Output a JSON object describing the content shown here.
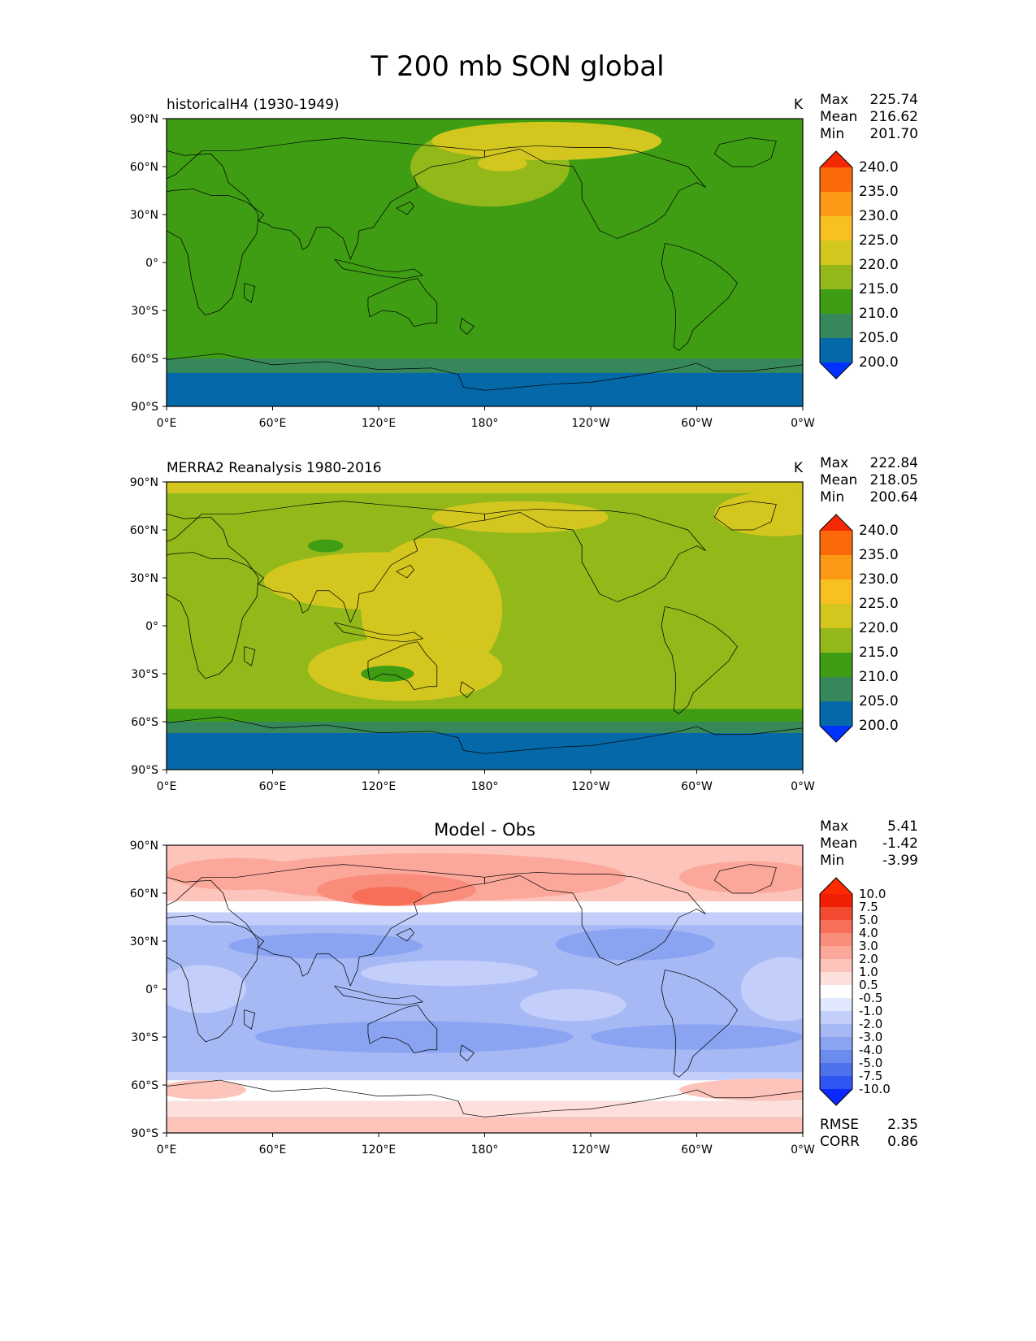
{
  "figure_title": "T 200 mb SON global",
  "chart_data": [
    {
      "type": "heatmap",
      "title": "historicalH4 (1930-1949)",
      "units": "K",
      "stats": [
        {
          "label": "Max",
          "value": "225.74"
        },
        {
          "label": "Mean",
          "value": "216.62"
        },
        {
          "label": "Min",
          "value": "201.70"
        }
      ],
      "x_ticks": [
        "0°E",
        "60°E",
        "120°E",
        "180°",
        "120°W",
        "60°W",
        "0°W"
      ],
      "y_ticks": [
        "90°N",
        "60°N",
        "30°N",
        "0°",
        "30°S",
        "60°S",
        "90°S"
      ],
      "xlim": [
        0,
        360
      ],
      "ylim": [
        -90,
        90
      ],
      "colorbar_levels": [
        "200.0",
        "205.0",
        "210.0",
        "215.0",
        "220.0",
        "225.0",
        "230.0",
        "235.0",
        "240.0"
      ],
      "colorbar_colors": [
        "#0033ff",
        "#0568a8",
        "#36875a",
        "#3f9d14",
        "#92b81a",
        "#d3c71f",
        "#f9c022",
        "#fb9914",
        "#fb6a0a",
        "#f52a05"
      ],
      "base_band": 3,
      "bands": [
        {
          "lat": [
            -90,
            -69
          ],
          "band": 1
        },
        {
          "lat": [
            -69,
            -60
          ],
          "band": 2
        },
        {
          "lat": [
            -60,
            -52
          ],
          "band": 3
        }
      ],
      "regions": [
        {
          "lon": 183,
          "lat": 60,
          "rlon": 45,
          "rlat": 25,
          "band": 4
        },
        {
          "lon": 215,
          "lat": 76,
          "rlon": 65,
          "rlat": 12,
          "band": 5
        },
        {
          "lon": 190,
          "lat": 62,
          "rlon": 14,
          "rlat": 5,
          "band": 5
        },
        {
          "lon": 20,
          "lat": 38,
          "rlon": 55,
          "rlat": 12,
          "band": 3
        },
        {
          "lon": 320,
          "lat": 32,
          "rlon": 60,
          "rlat": 15,
          "band": 3
        },
        {
          "lon": 315,
          "lat": -30,
          "rlon": 40,
          "rlat": 13,
          "band": 3
        },
        {
          "lon": 242,
          "lat": -30,
          "rlon": 50,
          "rlat": 15,
          "band": 3
        },
        {
          "lon": 55,
          "lat": -30,
          "rlon": 45,
          "rlat": 6,
          "band": 3
        },
        {
          "lon": 0,
          "lat": -33,
          "rlon": 10,
          "rlat": 10,
          "band": 3
        }
      ]
    },
    {
      "type": "heatmap",
      "title": "MERRA2 Reanalysis 1980-2016",
      "units": "K",
      "stats": [
        {
          "label": "Max",
          "value": "222.84"
        },
        {
          "label": "Mean",
          "value": "218.05"
        },
        {
          "label": "Min",
          "value": "200.64"
        }
      ],
      "x_ticks": [
        "0°E",
        "60°E",
        "120°E",
        "180°",
        "120°W",
        "60°W",
        "0°W"
      ],
      "y_ticks": [
        "90°N",
        "60°N",
        "30°N",
        "0°",
        "30°S",
        "60°S",
        "90°S"
      ],
      "xlim": [
        0,
        360
      ],
      "ylim": [
        -90,
        90
      ],
      "colorbar_levels": [
        "200.0",
        "205.0",
        "210.0",
        "215.0",
        "220.0",
        "225.0",
        "230.0",
        "235.0",
        "240.0"
      ],
      "colorbar_colors": [
        "#0033ff",
        "#0568a8",
        "#36875a",
        "#3f9d14",
        "#92b81a",
        "#d3c71f",
        "#f9c022",
        "#fb9914",
        "#fb6a0a",
        "#f52a05"
      ],
      "base_band": 4,
      "bands": [
        {
          "lat": [
            -90,
            -67
          ],
          "band": 1
        },
        {
          "lat": [
            -67,
            -60
          ],
          "band": 2
        },
        {
          "lat": [
            -60,
            -52
          ],
          "band": 3
        },
        {
          "lat": [
            83,
            90
          ],
          "band": 5
        }
      ],
      "regions": [
        {
          "lon": 120,
          "lat": 28,
          "rlon": 65,
          "rlat": 18,
          "band": 5
        },
        {
          "lon": 150,
          "lat": 10,
          "rlon": 40,
          "rlat": 45,
          "band": 5
        },
        {
          "lon": 135,
          "lat": -27,
          "rlon": 55,
          "rlat": 20,
          "band": 5
        },
        {
          "lon": 200,
          "lat": 68,
          "rlon": 50,
          "rlat": 10,
          "band": 5
        },
        {
          "lon": 345,
          "lat": 70,
          "rlon": 35,
          "rlat": 14,
          "band": 5
        },
        {
          "lon": 90,
          "lat": 50,
          "rlon": 10,
          "rlat": 4,
          "band": 3
        },
        {
          "lon": 125,
          "lat": -30,
          "rlon": 15,
          "rlat": 5,
          "band": 3
        }
      ]
    },
    {
      "type": "heatmap",
      "title": "Model - Obs",
      "units": "",
      "stats": [
        {
          "label": "Max",
          "value": "5.41"
        },
        {
          "label": "Mean",
          "value": "-1.42"
        },
        {
          "label": "Min",
          "value": "-3.99"
        }
      ],
      "metrics": [
        {
          "label": "RMSE",
          "value": "2.35"
        },
        {
          "label": "CORR",
          "value": "0.86"
        }
      ],
      "x_ticks": [
        "0°E",
        "60°E",
        "120°E",
        "180°",
        "120°W",
        "60°W",
        "0°W"
      ],
      "y_ticks": [
        "90°N",
        "60°N",
        "30°N",
        "0°",
        "30°S",
        "60°S",
        "90°S"
      ],
      "xlim": [
        0,
        360
      ],
      "ylim": [
        -90,
        90
      ],
      "colorbar_levels": [
        "-10.0",
        "-7.5",
        "-5.0",
        "-4.0",
        "-3.0",
        "-2.0",
        "-1.0",
        "-0.5",
        "0.5",
        "1.0",
        "2.0",
        "3.0",
        "4.0",
        "5.0",
        "7.5",
        "10.0"
      ],
      "colorbar_colors": [
        "#0a28ff",
        "#2f56f0",
        "#4d72ec",
        "#6b8bef",
        "#8ba4f2",
        "#a7b9f5",
        "#c3cffa",
        "#e1e8fd",
        "#ffffff",
        "#fde0dc",
        "#fcc4bb",
        "#fba89a",
        "#f98c7a",
        "#f76f59",
        "#f34a31",
        "#f01e05",
        "#ff2a00"
      ],
      "base_band": 5,
      "bands": [
        {
          "lat": [
            -90,
            -80
          ],
          "band": 10
        },
        {
          "lat": [
            -80,
            -70
          ],
          "band": 9
        },
        {
          "lat": [
            -70,
            -57
          ],
          "band": 8
        },
        {
          "lat": [
            -57,
            -52
          ],
          "band": 6
        },
        {
          "lat": [
            48,
            55
          ],
          "band": 8
        },
        {
          "lat": [
            55,
            90
          ],
          "band": 10
        },
        {
          "lat": [
            40,
            48
          ],
          "band": 6
        }
      ],
      "regions": [
        {
          "lon": 150,
          "lat": 70,
          "rlon": 110,
          "rlat": 15,
          "band": 11
        },
        {
          "lon": 130,
          "lat": 62,
          "rlon": 45,
          "rlat": 10,
          "band": 12
        },
        {
          "lon": 125,
          "lat": 58,
          "rlon": 20,
          "rlat": 6,
          "band": 13
        },
        {
          "lon": 40,
          "lat": 72,
          "rlon": 40,
          "rlat": 10,
          "band": 11
        },
        {
          "lon": 330,
          "lat": 70,
          "rlon": 40,
          "rlat": 10,
          "band": 11
        },
        {
          "lon": 340,
          "lat": -63,
          "rlon": 50,
          "rlat": 7,
          "band": 10
        },
        {
          "lon": 20,
          "lat": -63,
          "rlon": 25,
          "rlat": 6,
          "band": 10
        },
        {
          "lon": 90,
          "lat": 27,
          "rlon": 55,
          "rlat": 8,
          "band": 4
        },
        {
          "lon": 265,
          "lat": 28,
          "rlon": 45,
          "rlat": 10,
          "band": 4
        },
        {
          "lon": 140,
          "lat": -30,
          "rlon": 90,
          "rlat": 10,
          "band": 4
        },
        {
          "lon": 300,
          "lat": -30,
          "rlon": 60,
          "rlat": 8,
          "band": 4
        },
        {
          "lon": 160,
          "lat": 10,
          "rlon": 50,
          "rlat": 8,
          "band": 6
        },
        {
          "lon": 20,
          "lat": 0,
          "rlon": 25,
          "rlat": 15,
          "band": 6
        },
        {
          "lon": 230,
          "lat": -10,
          "rlon": 30,
          "rlat": 10,
          "band": 6
        },
        {
          "lon": 350,
          "lat": 0,
          "rlon": 25,
          "rlat": 20,
          "band": 6
        }
      ]
    }
  ]
}
